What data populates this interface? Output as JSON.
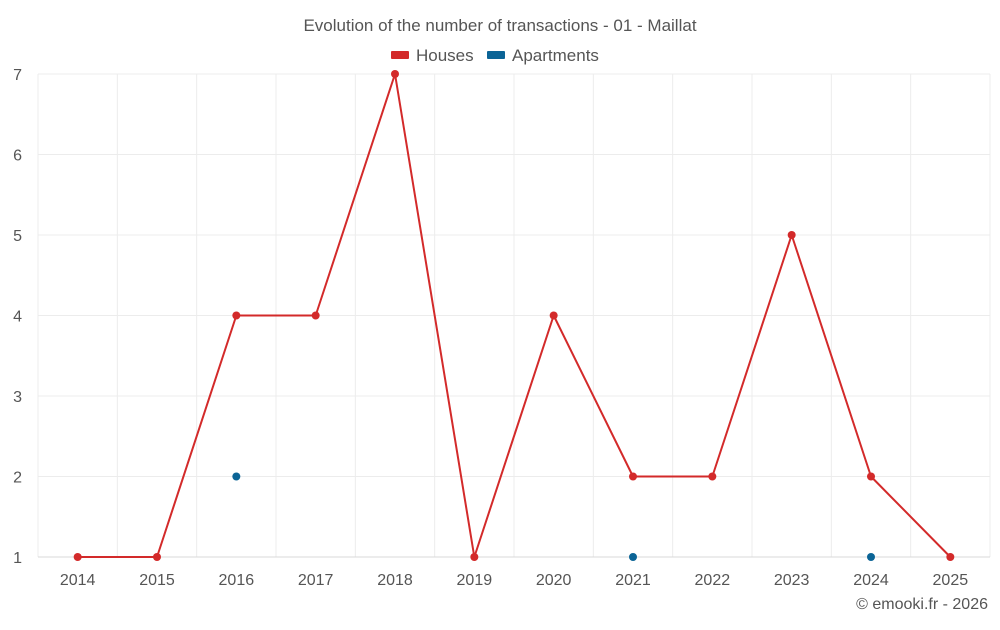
{
  "chart_data": {
    "type": "line",
    "title": "Evolution of the number of transactions - 01 - Maillat",
    "categories": [
      "2014",
      "2015",
      "2016",
      "2017",
      "2018",
      "2019",
      "2020",
      "2021",
      "2022",
      "2023",
      "2024",
      "2025"
    ],
    "ylim": [
      1,
      7
    ],
    "yticks": [
      1,
      2,
      3,
      4,
      5,
      6,
      7
    ],
    "grid": true,
    "legend_position": "top-center",
    "series": [
      {
        "name": "Houses",
        "color": "#d32a2a",
        "connected": true,
        "values": [
          1,
          1,
          4,
          4,
          7,
          1,
          4,
          2,
          2,
          5,
          2,
          1
        ]
      },
      {
        "name": "Apartments",
        "color": "#0b6496",
        "connected": false,
        "values": [
          null,
          null,
          2,
          null,
          null,
          null,
          null,
          1,
          null,
          null,
          1,
          null
        ]
      }
    ],
    "xlabel": "",
    "ylabel": ""
  },
  "credit": "© emooki.fr - 2026"
}
